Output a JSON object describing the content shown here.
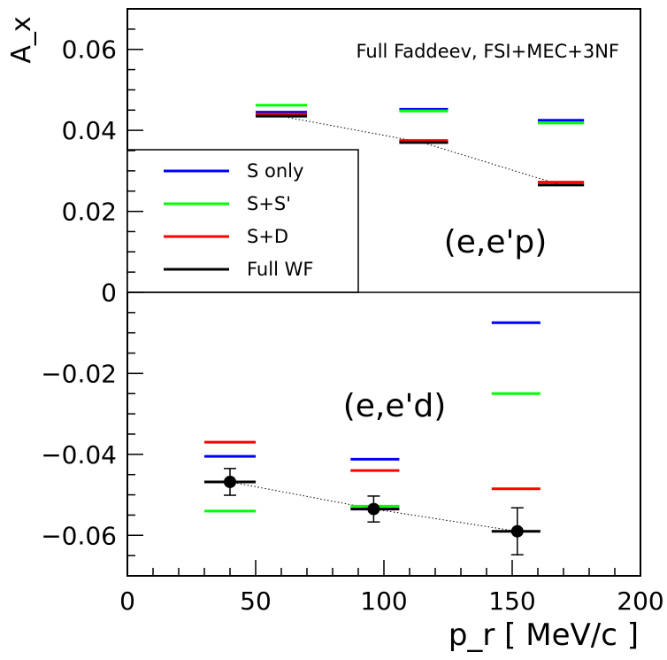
{
  "chart_data": {
    "type": "scatter",
    "title": "Full Faddeev, FSI+MEC+3NF",
    "xlabel": "p_r [ MeV/c ]",
    "ylabel": "A_x",
    "xlim": [
      0,
      200
    ],
    "ylim": [
      -0.07,
      0.07
    ],
    "x_ticks": [
      0,
      50,
      100,
      150,
      200
    ],
    "x_tick_labels": [
      "0",
      "50",
      "100",
      "150",
      "200"
    ],
    "y_ticks": [
      -0.06,
      -0.04,
      -0.02,
      0,
      0.02,
      0.04,
      0.06
    ],
    "y_tick_labels": [
      "−0.06",
      "−0.04",
      "−0.02",
      "0",
      "0.02",
      "0.04",
      "0.06"
    ],
    "grid": false,
    "legend_position": "middle-left",
    "annotations": [
      "(e,e'p)",
      "(e,e'd)"
    ],
    "series": [
      {
        "name": "S only",
        "color": "#0000ff",
        "points": [
          {
            "x1": 50,
            "x2": 70,
            "y": 0.0445
          },
          {
            "x1": 106,
            "x2": 125,
            "y": 0.0452
          },
          {
            "x1": 160,
            "x2": 178,
            "y": 0.0425
          },
          {
            "x1": 30,
            "x2": 50,
            "y": -0.0405
          },
          {
            "x1": 87,
            "x2": 106,
            "y": -0.0412
          },
          {
            "x1": 142,
            "x2": 161,
            "y": -0.0075
          }
        ]
      },
      {
        "name": "S+S'",
        "color": "#00ff00",
        "points": [
          {
            "x1": 50,
            "x2": 70,
            "y": 0.0462
          },
          {
            "x1": 106,
            "x2": 125,
            "y": 0.0448
          },
          {
            "x1": 160,
            "x2": 178,
            "y": 0.0418
          },
          {
            "x1": 30,
            "x2": 50,
            "y": -0.054
          },
          {
            "x1": 87,
            "x2": 106,
            "y": -0.0528
          },
          {
            "x1": 142,
            "x2": 161,
            "y": -0.025
          }
        ]
      },
      {
        "name": "S+D",
        "color": "#ff0000",
        "points": [
          {
            "x1": 50,
            "x2": 70,
            "y": 0.044
          },
          {
            "x1": 106,
            "x2": 125,
            "y": 0.0375
          },
          {
            "x1": 160,
            "x2": 178,
            "y": 0.0272
          },
          {
            "x1": 30,
            "x2": 50,
            "y": -0.037
          },
          {
            "x1": 87,
            "x2": 106,
            "y": -0.044
          },
          {
            "x1": 142,
            "x2": 161,
            "y": -0.0485
          }
        ]
      },
      {
        "name": "Full WF",
        "color": "#000000",
        "points": [
          {
            "x1": 50,
            "x2": 70,
            "y": 0.0435
          },
          {
            "x1": 106,
            "x2": 125,
            "y": 0.037
          },
          {
            "x1": 160,
            "x2": 178,
            "y": 0.0265
          },
          {
            "x1": 30,
            "x2": 50,
            "y": -0.0468
          },
          {
            "x1": 87,
            "x2": 106,
            "y": -0.0535
          },
          {
            "x1": 142,
            "x2": 161,
            "y": -0.059
          }
        ]
      }
    ],
    "dotted_lines": [
      [
        [
          60,
          0.0435
        ],
        [
          115,
          0.037
        ],
        [
          169,
          0.0265
        ]
      ],
      [
        [
          40,
          -0.0468
        ],
        [
          96,
          -0.0535
        ],
        [
          152,
          -0.059
        ]
      ]
    ],
    "data_points": [
      {
        "x": 40,
        "y": -0.0468,
        "yerr": 0.0033
      },
      {
        "x": 96,
        "y": -0.0535,
        "yerr": 0.0032
      },
      {
        "x": 152,
        "y": -0.059,
        "yerr": 0.0058
      }
    ]
  }
}
